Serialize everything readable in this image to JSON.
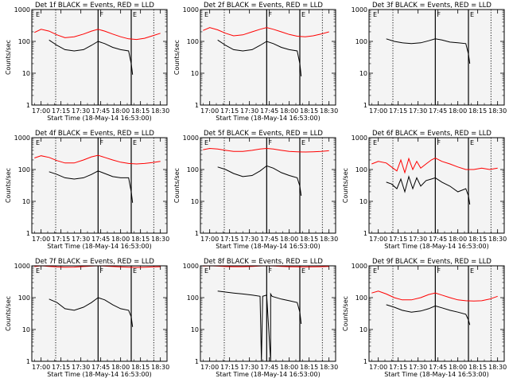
{
  "chart_data": [
    {
      "type": "line",
      "title": "Det 1f BLACK = Events, RED = LLD",
      "xlabel": "Start Time (18-May-14 16:53:00)",
      "ylabel": "Counts/sec",
      "y_scale": "log",
      "ylim": [
        1,
        1000
      ],
      "x_ticks": [
        "17:00",
        "17:15",
        "17:30",
        "17:45",
        "18:00",
        "18:15",
        "18:30"
      ],
      "y_ticks": [
        "1",
        "10",
        "100",
        "1000"
      ],
      "markers": {
        "vertical_lines": [
          "17:11",
          "17:43",
          "18:08",
          "18:25"
        ],
        "labels": [
          "E",
          "F",
          "E"
        ]
      },
      "series": [
        {
          "color": "#ff0000",
          "x": [
            "16:55",
            "17:00",
            "17:06",
            "17:12",
            "17:18",
            "17:25",
            "17:32",
            "17:38",
            "17:43",
            "17:48",
            "17:54",
            "18:00",
            "18:06",
            "18:12",
            "18:18",
            "18:24",
            "18:30"
          ],
          "y": [
            190,
            240,
            210,
            160,
            130,
            140,
            170,
            210,
            240,
            210,
            170,
            140,
            120,
            115,
            125,
            150,
            180
          ]
        },
        {
          "color": "#000000",
          "x": [
            "17:06",
            "17:12",
            "17:18",
            "17:25",
            "17:32",
            "17:38",
            "17:43",
            "17:48",
            "17:54",
            "18:00",
            "18:06",
            "18:08",
            "18:09"
          ],
          "y": [
            110,
            75,
            55,
            50,
            55,
            75,
            100,
            85,
            65,
            55,
            50,
            20,
            9
          ]
        }
      ]
    },
    {
      "type": "line",
      "title": "Det 2f BLACK = Events, RED = LLD",
      "xlabel": "Start Time (18-May-14 16:53:00)",
      "ylabel": "Counts/sec",
      "y_scale": "log",
      "ylim": [
        1,
        1000
      ],
      "x_ticks": [
        "17:00",
        "17:15",
        "17:30",
        "17:45",
        "18:00",
        "18:15",
        "18:30"
      ],
      "y_ticks": [
        "1",
        "10",
        "100",
        "1000"
      ],
      "markers": {
        "vertical_lines": [
          "17:11",
          "17:43",
          "18:08",
          "18:25"
        ],
        "labels": [
          "E",
          "F",
          "E"
        ]
      },
      "series": [
        {
          "color": "#ff0000",
          "x": [
            "16:55",
            "17:00",
            "17:06",
            "17:12",
            "17:18",
            "17:25",
            "17:32",
            "17:38",
            "17:43",
            "17:48",
            "17:54",
            "18:00",
            "18:06",
            "18:12",
            "18:18",
            "18:24",
            "18:30"
          ],
          "y": [
            220,
            270,
            230,
            180,
            150,
            160,
            200,
            240,
            270,
            240,
            200,
            165,
            145,
            140,
            150,
            170,
            200
          ]
        },
        {
          "color": "#000000",
          "x": [
            "17:06",
            "17:12",
            "17:18",
            "17:25",
            "17:32",
            "17:38",
            "17:43",
            "17:48",
            "17:54",
            "18:00",
            "18:06",
            "18:08",
            "18:09"
          ],
          "y": [
            110,
            75,
            55,
            50,
            55,
            75,
            100,
            85,
            65,
            55,
            50,
            20,
            8
          ]
        }
      ]
    },
    {
      "type": "line",
      "title": "Det 3f BLACK = Events, RED = LLD",
      "xlabel": "",
      "ylabel": "",
      "y_scale": "log",
      "ylim": [
        1,
        1000
      ],
      "x_ticks": [
        "17:00",
        "17:15",
        "17:30",
        "17:45",
        "18:00",
        "18:15",
        "18:30"
      ],
      "y_ticks": [
        "1",
        "10",
        "100",
        "1000"
      ],
      "markers": {
        "vertical_lines": [
          "17:11",
          "17:43",
          "18:08",
          "18:25"
        ],
        "labels": [
          "E",
          "F",
          "E"
        ]
      },
      "series": [
        {
          "color": "#000000",
          "x": [
            "17:06",
            "17:12",
            "17:18",
            "17:25",
            "17:32",
            "17:38",
            "17:43",
            "17:48",
            "17:54",
            "18:00",
            "18:06",
            "18:08",
            "18:09"
          ],
          "y": [
            120,
            100,
            90,
            85,
            90,
            105,
            120,
            110,
            95,
            90,
            85,
            40,
            20
          ]
        }
      ]
    },
    {
      "type": "line",
      "title": "Det 4f BLACK = Events, RED = LLD",
      "xlabel": "Start Time (18-May-14 16:53:00)",
      "ylabel": "Counts/sec",
      "y_scale": "log",
      "ylim": [
        1,
        1000
      ],
      "x_ticks": [
        "17:00",
        "17:15",
        "17:30",
        "17:45",
        "18:00",
        "18:15",
        "18:30"
      ],
      "y_ticks": [
        "1",
        "10",
        "100",
        "1000"
      ],
      "markers": {
        "vertical_lines": [
          "17:11",
          "17:43",
          "18:08",
          "18:25"
        ],
        "labels": [
          "E",
          "F",
          "E"
        ]
      },
      "series": [
        {
          "color": "#ff0000",
          "x": [
            "16:55",
            "17:00",
            "17:06",
            "17:12",
            "17:18",
            "17:25",
            "17:32",
            "17:38",
            "17:43",
            "17:48",
            "17:54",
            "18:00",
            "18:06",
            "18:12",
            "18:18",
            "18:24",
            "18:30"
          ],
          "y": [
            230,
            270,
            240,
            190,
            160,
            160,
            200,
            250,
            280,
            240,
            200,
            170,
            155,
            150,
            155,
            165,
            180
          ]
        },
        {
          "color": "#000000",
          "x": [
            "17:06",
            "17:12",
            "17:18",
            "17:25",
            "17:32",
            "17:38",
            "17:43",
            "17:48",
            "17:54",
            "18:00",
            "18:06",
            "18:08",
            "18:09"
          ],
          "y": [
            85,
            70,
            55,
            50,
            55,
            70,
            90,
            75,
            60,
            55,
            55,
            20,
            9
          ]
        }
      ]
    },
    {
      "type": "line",
      "title": "Det 5f BLACK = Events, RED = LLD",
      "xlabel": "Start Time (18-May-14 16:53:00)",
      "ylabel": "Counts/sec",
      "y_scale": "log",
      "ylim": [
        1,
        1000
      ],
      "x_ticks": [
        "17:00",
        "17:15",
        "17:30",
        "17:45",
        "18:00",
        "18:15",
        "18:30"
      ],
      "y_ticks": [
        "1",
        "10",
        "100",
        "1000"
      ],
      "markers": {
        "vertical_lines": [
          "17:11",
          "17:43",
          "18:08",
          "18:25"
        ],
        "labels": [
          "E",
          "F",
          "E"
        ]
      },
      "series": [
        {
          "color": "#ff0000",
          "x": [
            "16:55",
            "17:00",
            "17:06",
            "17:12",
            "17:18",
            "17:25",
            "17:32",
            "17:38",
            "17:43",
            "17:48",
            "17:54",
            "18:00",
            "18:06",
            "18:12",
            "18:18",
            "18:24",
            "18:30"
          ],
          "y": [
            420,
            460,
            440,
            400,
            370,
            370,
            400,
            440,
            460,
            440,
            400,
            370,
            360,
            355,
            360,
            370,
            390
          ]
        },
        {
          "color": "#000000",
          "x": [
            "17:06",
            "17:12",
            "17:18",
            "17:25",
            "17:32",
            "17:38",
            "17:43",
            "17:48",
            "17:54",
            "18:00",
            "18:06",
            "18:08",
            "18:09"
          ],
          "y": [
            120,
            100,
            75,
            60,
            65,
            90,
            130,
            110,
            80,
            65,
            55,
            30,
            15
          ]
        }
      ]
    },
    {
      "type": "line",
      "title": "Det 6f BLACK = Events, RED = LLD",
      "xlabel": "Start Time (18-May-14 16:53:00)",
      "ylabel": "Counts/sec",
      "y_scale": "log",
      "ylim": [
        1,
        1000
      ],
      "x_ticks": [
        "17:00",
        "17:15",
        "17:30",
        "17:45",
        "18:00",
        "18:15",
        "18:30"
      ],
      "y_ticks": [
        "1",
        "10",
        "100",
        "1000"
      ],
      "markers": {
        "vertical_lines": [
          "17:11",
          "17:43",
          "18:08",
          "18:25"
        ],
        "labels": [
          "E",
          "F",
          "E"
        ]
      },
      "series": [
        {
          "color": "#ff0000",
          "x": [
            "16:55",
            "17:00",
            "17:06",
            "17:10",
            "17:14",
            "17:17",
            "17:20",
            "17:23",
            "17:26",
            "17:29",
            "17:32",
            "17:36",
            "17:40",
            "17:43",
            "17:48",
            "17:54",
            "18:00",
            "18:06",
            "18:12",
            "18:18",
            "18:24",
            "18:30"
          ],
          "y": [
            150,
            180,
            160,
            120,
            90,
            200,
            80,
            220,
            100,
            180,
            110,
            150,
            200,
            230,
            180,
            150,
            120,
            100,
            100,
            110,
            100,
            110
          ]
        },
        {
          "color": "#000000",
          "x": [
            "17:06",
            "17:10",
            "17:14",
            "17:17",
            "17:20",
            "17:23",
            "17:26",
            "17:29",
            "17:32",
            "17:36",
            "17:40",
            "17:43",
            "17:48",
            "17:54",
            "18:00",
            "18:06",
            "18:08",
            "18:09"
          ],
          "y": [
            40,
            35,
            25,
            50,
            20,
            60,
            25,
            55,
            30,
            45,
            50,
            55,
            40,
            30,
            20,
            25,
            15,
            8
          ]
        }
      ]
    },
    {
      "type": "line",
      "title": "Det 7f BLACK = Events, RED = LLD",
      "xlabel": "Start Time (18-May-14 16:53:00)",
      "ylabel": "Counts/sec",
      "y_scale": "log",
      "ylim": [
        1,
        1000
      ],
      "x_ticks": [
        "17:00",
        "17:15",
        "17:30",
        "17:45",
        "18:00",
        "18:15",
        "18:30"
      ],
      "y_ticks": [
        "1",
        "10",
        "100",
        "1000"
      ],
      "markers": {
        "vertical_lines": [
          "17:11",
          "17:43",
          "18:08",
          "18:25"
        ],
        "labels": [
          "E",
          "F",
          "E"
        ]
      },
      "series": [
        {
          "color": "#ff0000",
          "x": [
            "16:55",
            "17:00",
            "17:06",
            "17:12",
            "17:18",
            "17:25",
            "17:32",
            "17:38",
            "17:43",
            "17:48",
            "17:54",
            "18:00",
            "18:06",
            "18:12",
            "18:18",
            "18:24",
            "18:30"
          ],
          "y": [
            950,
            1000,
            960,
            920,
            900,
            910,
            950,
            980,
            1000,
            980,
            950,
            920,
            900,
            890,
            900,
            920,
            940
          ]
        },
        {
          "color": "#000000",
          "x": [
            "17:06",
            "17:12",
            "17:18",
            "17:25",
            "17:32",
            "17:38",
            "17:43",
            "17:48",
            "17:54",
            "18:00",
            "18:06",
            "18:08",
            "18:09"
          ],
          "y": [
            90,
            70,
            45,
            40,
            50,
            70,
            100,
            85,
            60,
            45,
            40,
            25,
            12
          ]
        }
      ]
    },
    {
      "type": "line",
      "title": "Det 8f BLACK = Events, RED = LLD",
      "xlabel": "Start Time (18-May-14 16:53:00)",
      "ylabel": "",
      "y_scale": "log",
      "ylim": [
        1,
        1000
      ],
      "x_ticks": [
        "17:00",
        "17:15",
        "17:30",
        "17:45",
        "18:00",
        "18:15",
        "18:30"
      ],
      "y_ticks": [
        "1",
        "10",
        "100",
        "1000"
      ],
      "markers": {
        "vertical_lines": [
          "17:11",
          "17:43",
          "18:08",
          "18:25"
        ],
        "labels": [
          "E",
          "F",
          "E"
        ]
      },
      "series": [
        {
          "color": "#ff0000",
          "x": [
            "16:55",
            "17:00",
            "17:06",
            "17:12",
            "17:18",
            "17:25",
            "17:32",
            "17:38",
            "17:43",
            "17:48",
            "17:54",
            "18:00",
            "18:06",
            "18:12",
            "18:18",
            "18:24",
            "18:30"
          ],
          "y": [
            980,
            1000,
            980,
            950,
            940,
            940,
            960,
            990,
            1000,
            990,
            960,
            940,
            930,
            920,
            930,
            940,
            960
          ]
        },
        {
          "color": "#000000",
          "x": [
            "17:06",
            "17:12",
            "17:18",
            "17:25",
            "17:32",
            "17:38",
            "17:39",
            "17:40",
            "17:43",
            "17:46",
            "17:46",
            "17:47",
            "17:54",
            "18:00",
            "18:06",
            "18:08",
            "18:09"
          ],
          "y": [
            160,
            150,
            140,
            130,
            120,
            110,
            1,
            110,
            120,
            1,
            130,
            110,
            90,
            80,
            70,
            35,
            15
          ]
        }
      ]
    },
    {
      "type": "line",
      "title": "Det 9f BLACK = Events, RED = LLD",
      "xlabel": "Start Time (18-May-14 16:53:00)",
      "ylabel": "Counts/sec",
      "y_scale": "log",
      "ylim": [
        1,
        1000
      ],
      "x_ticks": [
        "17:00",
        "17:15",
        "17:30",
        "17:45",
        "18:00",
        "18:15",
        "18:30"
      ],
      "y_ticks": [
        "1",
        "10",
        "100",
        "1000"
      ],
      "markers": {
        "vertical_lines": [
          "17:11",
          "17:43",
          "18:08",
          "18:25"
        ],
        "labels": [
          "E",
          "F",
          "E"
        ]
      },
      "series": [
        {
          "color": "#ff0000",
          "x": [
            "16:55",
            "17:00",
            "17:06",
            "17:12",
            "17:18",
            "17:25",
            "17:32",
            "17:38",
            "17:43",
            "17:48",
            "17:54",
            "18:00",
            "18:06",
            "18:12",
            "18:18",
            "18:24",
            "18:30"
          ],
          "y": [
            140,
            160,
            130,
            100,
            85,
            85,
            100,
            125,
            140,
            120,
            100,
            85,
            80,
            78,
            80,
            90,
            110
          ]
        },
        {
          "color": "#000000",
          "x": [
            "17:06",
            "17:12",
            "17:18",
            "17:25",
            "17:32",
            "17:38",
            "17:43",
            "17:48",
            "17:54",
            "18:00",
            "18:06",
            "18:08",
            "18:09"
          ],
          "y": [
            60,
            50,
            40,
            35,
            38,
            45,
            55,
            48,
            40,
            35,
            30,
            20,
            14
          ]
        }
      ]
    }
  ]
}
